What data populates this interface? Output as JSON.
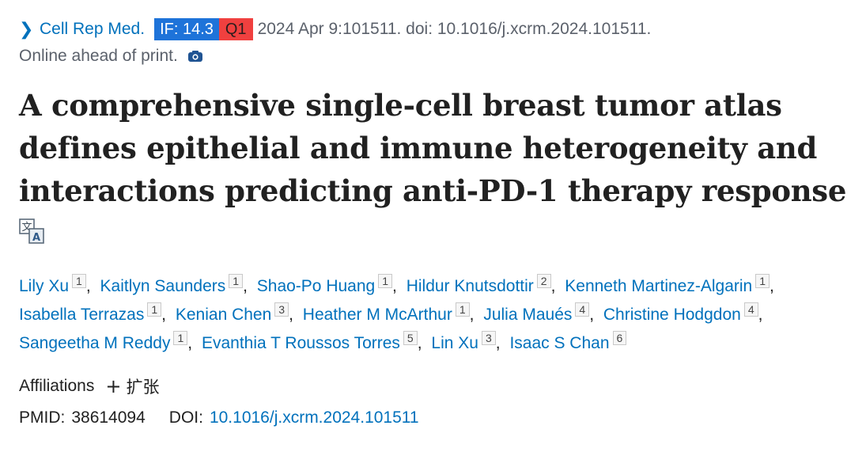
{
  "citation": {
    "journal": "Cell Rep Med.",
    "if_badge": "IF: 14.3",
    "quartile_badge": "Q1",
    "text": "2024 Apr 9:101511. doi: 10.1016/j.xcrm.2024.101511.",
    "status": "Online ahead of print.",
    "colors": {
      "if_bg": "#1e73d9",
      "q_bg": "#f0403f",
      "link": "#0071bc"
    }
  },
  "title": {
    "line1": "A comprehensive single-cell breast tumor atlas",
    "line2": "defines epithelial and immune heterogeneity and",
    "line3": "interactions predicting anti-PD-1 therapy response"
  },
  "authors": [
    {
      "name": "Lily Xu",
      "aff": "1"
    },
    {
      "name": "Kaitlyn Saunders",
      "aff": "1"
    },
    {
      "name": "Shao-Po Huang",
      "aff": "1"
    },
    {
      "name": "Hildur Knutsdottir",
      "aff": "2"
    },
    {
      "name": "Kenneth Martinez-Algarin",
      "aff": "1"
    },
    {
      "name": "Isabella Terrazas",
      "aff": "1"
    },
    {
      "name": "Kenian Chen",
      "aff": "3"
    },
    {
      "name": "Heather M McArthur",
      "aff": "1"
    },
    {
      "name": "Julia Maués",
      "aff": "4"
    },
    {
      "name": "Christine Hodgdon",
      "aff": "4"
    },
    {
      "name": "Sangeetha M Reddy",
      "aff": "1"
    },
    {
      "name": "Evanthia T Roussos Torres",
      "aff": "5"
    },
    {
      "name": "Lin Xu",
      "aff": "3"
    },
    {
      "name": "Isaac S Chan",
      "aff": "6"
    }
  ],
  "affiliations": {
    "label": "Affiliations",
    "expand_label": "扩张"
  },
  "ids": {
    "pmid_label": "PMID:",
    "pmid": "38614094",
    "doi_label": "DOI:",
    "doi": "10.1016/j.xcrm.2024.101511"
  },
  "icons": {
    "journal_chevron": "chevron-right-icon",
    "camera": "camera-icon",
    "translate": "translate-icon",
    "expand": "plus-icon"
  }
}
